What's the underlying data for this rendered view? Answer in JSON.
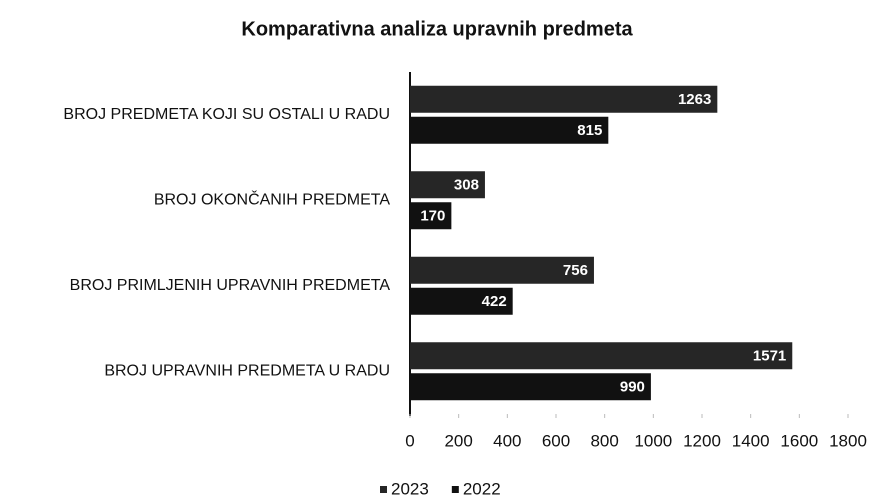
{
  "chart_data": {
    "type": "barh",
    "title": "Komparativna analiza upravnih predmeta",
    "categories": [
      "BROJ PREDMETA KOJI SU OSTALI U RADU",
      "BROJ OKONČANIH PREDMETA",
      "BROJ PRIMLJENIH UPRAVNIH PREDMETA",
      "BROJ UPRAVNIH PREDMETA U RADU"
    ],
    "series": [
      {
        "name": "2023",
        "color": "#262626",
        "values": [
          1263,
          308,
          756,
          1571
        ]
      },
      {
        "name": "2022",
        "color": "#111111",
        "values": [
          815,
          170,
          422,
          990
        ]
      }
    ],
    "xlim": [
      0,
      1800
    ],
    "xticks": [
      0,
      200,
      400,
      600,
      800,
      1000,
      1200,
      1400,
      1600,
      1800
    ],
    "grid": false,
    "legend": "bottom"
  }
}
